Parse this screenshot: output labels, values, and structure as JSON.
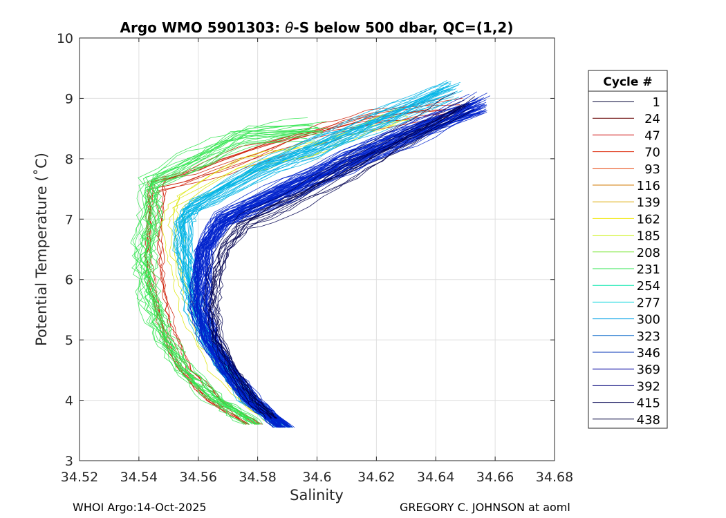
{
  "chart_data": {
    "type": "line",
    "title": "Argo WMO 5901303: θ-S below 500 dbar,  QC=(1,2)",
    "title_parts": {
      "prefix": "Argo WMO 5901303: ",
      "theta": "θ",
      "suffix": "-S below 500 dbar,  QC=(1,2)"
    },
    "xlabel": "Salinity",
    "ylabel": "Potential Temperature (˚C)",
    "xlim": [
      34.52,
      34.68
    ],
    "ylim": [
      3,
      10
    ],
    "x_ticks": [
      34.52,
      34.54,
      34.56,
      34.58,
      34.6,
      34.62,
      34.64,
      34.66,
      34.68
    ],
    "x_tick_labels": [
      "34.52",
      "34.54",
      "34.56",
      "34.58",
      "34.6",
      "34.62",
      "34.64",
      "34.66",
      "34.68"
    ],
    "y_ticks": [
      3,
      4,
      5,
      6,
      7,
      8,
      9,
      10
    ],
    "y_tick_labels": [
      "3",
      "4",
      "5",
      "6",
      "7",
      "8",
      "9",
      "10"
    ],
    "grid": true,
    "legend": {
      "title": "Cycle #",
      "placement": "right",
      "entries": [
        {
          "label": "1",
          "color": "#000033"
        },
        {
          "label": "24",
          "color": "#660000"
        },
        {
          "label": "47",
          "color": "#cc0000"
        },
        {
          "label": "70",
          "color": "#dd2200"
        },
        {
          "label": "93",
          "color": "#e63c00"
        },
        {
          "label": "116",
          "color": "#d27800"
        },
        {
          "label": "139",
          "color": "#dcaa00"
        },
        {
          "label": "162",
          "color": "#f0e600"
        },
        {
          "label": "185",
          "color": "#c8f000"
        },
        {
          "label": "208",
          "color": "#78e632"
        },
        {
          "label": "231",
          "color": "#32e650"
        },
        {
          "label": "254",
          "color": "#00e6aa"
        },
        {
          "label": "277",
          "color": "#00d2dc"
        },
        {
          "label": "300",
          "color": "#00a0e6"
        },
        {
          "label": "323",
          "color": "#0064c8"
        },
        {
          "label": "346",
          "color": "#0032b4"
        },
        {
          "label": "369",
          "color": "#0000a0"
        },
        {
          "label": "392",
          "color": "#000078"
        },
        {
          "label": "415",
          "color": "#000050"
        },
        {
          "label": "438",
          "color": "#00003c"
        }
      ]
    },
    "profile_groups": [
      {
        "name": "early-cycles",
        "color": "#cc1a00",
        "count": 10,
        "base": [
          [
            34.546,
            7.55
          ],
          [
            34.545,
            7.0
          ],
          [
            34.545,
            6.5
          ],
          [
            34.546,
            6.0
          ],
          [
            34.548,
            5.5
          ],
          [
            34.551,
            5.0
          ],
          [
            34.556,
            4.5
          ],
          [
            34.566,
            4.0
          ],
          [
            34.579,
            3.6
          ]
        ],
        "upper": [
          [
            34.55,
            7.55
          ],
          [
            34.575,
            8.0
          ],
          [
            34.6,
            8.4
          ],
          [
            34.62,
            8.65
          ],
          [
            34.645,
            8.85
          ]
        ]
      },
      {
        "name": "green-cycles",
        "color": "#32e650",
        "count": 20,
        "base": [
          [
            34.544,
            7.6
          ],
          [
            34.544,
            7.0
          ],
          [
            34.542,
            6.5
          ],
          [
            34.542,
            6.0
          ],
          [
            34.545,
            5.5
          ],
          [
            34.549,
            5.0
          ],
          [
            34.555,
            4.5
          ],
          [
            34.566,
            4.0
          ],
          [
            34.579,
            3.6
          ]
        ],
        "upper": [
          [
            34.544,
            7.6
          ],
          [
            34.56,
            8.0
          ],
          [
            34.575,
            8.35
          ],
          [
            34.6,
            8.5
          ]
        ]
      },
      {
        "name": "yellow-cycles",
        "color": "#dce600",
        "count": 5,
        "base": [
          [
            34.552,
            7.3
          ],
          [
            34.551,
            7.0
          ],
          [
            34.552,
            6.5
          ],
          [
            34.554,
            6.0
          ],
          [
            34.557,
            5.5
          ],
          [
            34.561,
            5.0
          ],
          [
            34.567,
            4.5
          ],
          [
            34.575,
            4.0
          ],
          [
            34.586,
            3.6
          ]
        ],
        "upper": [
          [
            34.552,
            7.3
          ],
          [
            34.575,
            7.9
          ],
          [
            34.6,
            8.25
          ],
          [
            34.62,
            8.55
          ],
          [
            34.63,
            8.7
          ]
        ]
      },
      {
        "name": "cyan-cycles",
        "color": "#00b4e6",
        "count": 30,
        "base": [
          [
            34.558,
            7.2
          ],
          [
            34.555,
            7.0
          ],
          [
            34.555,
            6.5
          ],
          [
            34.557,
            6.0
          ],
          [
            34.559,
            5.5
          ],
          [
            34.563,
            5.0
          ],
          [
            34.569,
            4.5
          ],
          [
            34.577,
            4.0
          ],
          [
            34.589,
            3.55
          ]
        ],
        "upper": [
          [
            34.558,
            7.2
          ],
          [
            34.58,
            7.8
          ],
          [
            34.6,
            8.2
          ],
          [
            34.62,
            8.6
          ],
          [
            34.645,
            9.15
          ]
        ]
      },
      {
        "name": "blue-cycles",
        "color": "#0022cc",
        "count": 60,
        "base": [
          [
            34.568,
            7.0
          ],
          [
            34.562,
            6.5
          ],
          [
            34.561,
            6.0
          ],
          [
            34.561,
            5.5
          ],
          [
            34.564,
            5.0
          ],
          [
            34.57,
            4.5
          ],
          [
            34.578,
            4.0
          ],
          [
            34.589,
            3.55
          ]
        ],
        "upper": [
          [
            34.568,
            7.0
          ],
          [
            34.59,
            7.5
          ],
          [
            34.61,
            7.95
          ],
          [
            34.63,
            8.4
          ],
          [
            34.655,
            8.9
          ]
        ]
      },
      {
        "name": "dark-cycles",
        "color": "#000050",
        "count": 14,
        "base": [
          [
            34.575,
            6.95
          ],
          [
            34.568,
            6.5
          ],
          [
            34.565,
            6.0
          ],
          [
            34.564,
            5.5
          ],
          [
            34.566,
            5.0
          ],
          [
            34.571,
            4.5
          ],
          [
            34.578,
            4.0
          ],
          [
            34.585,
            3.7
          ]
        ],
        "upper": [
          [
            34.575,
            6.95
          ],
          [
            34.59,
            7.3
          ],
          [
            34.61,
            7.85
          ],
          [
            34.63,
            8.35
          ],
          [
            34.65,
            8.95
          ]
        ]
      }
    ]
  },
  "footer": {
    "left": "WHOI Argo:14-Oct-2025",
    "right": "GREGORY C. JOHNSON at aoml"
  }
}
